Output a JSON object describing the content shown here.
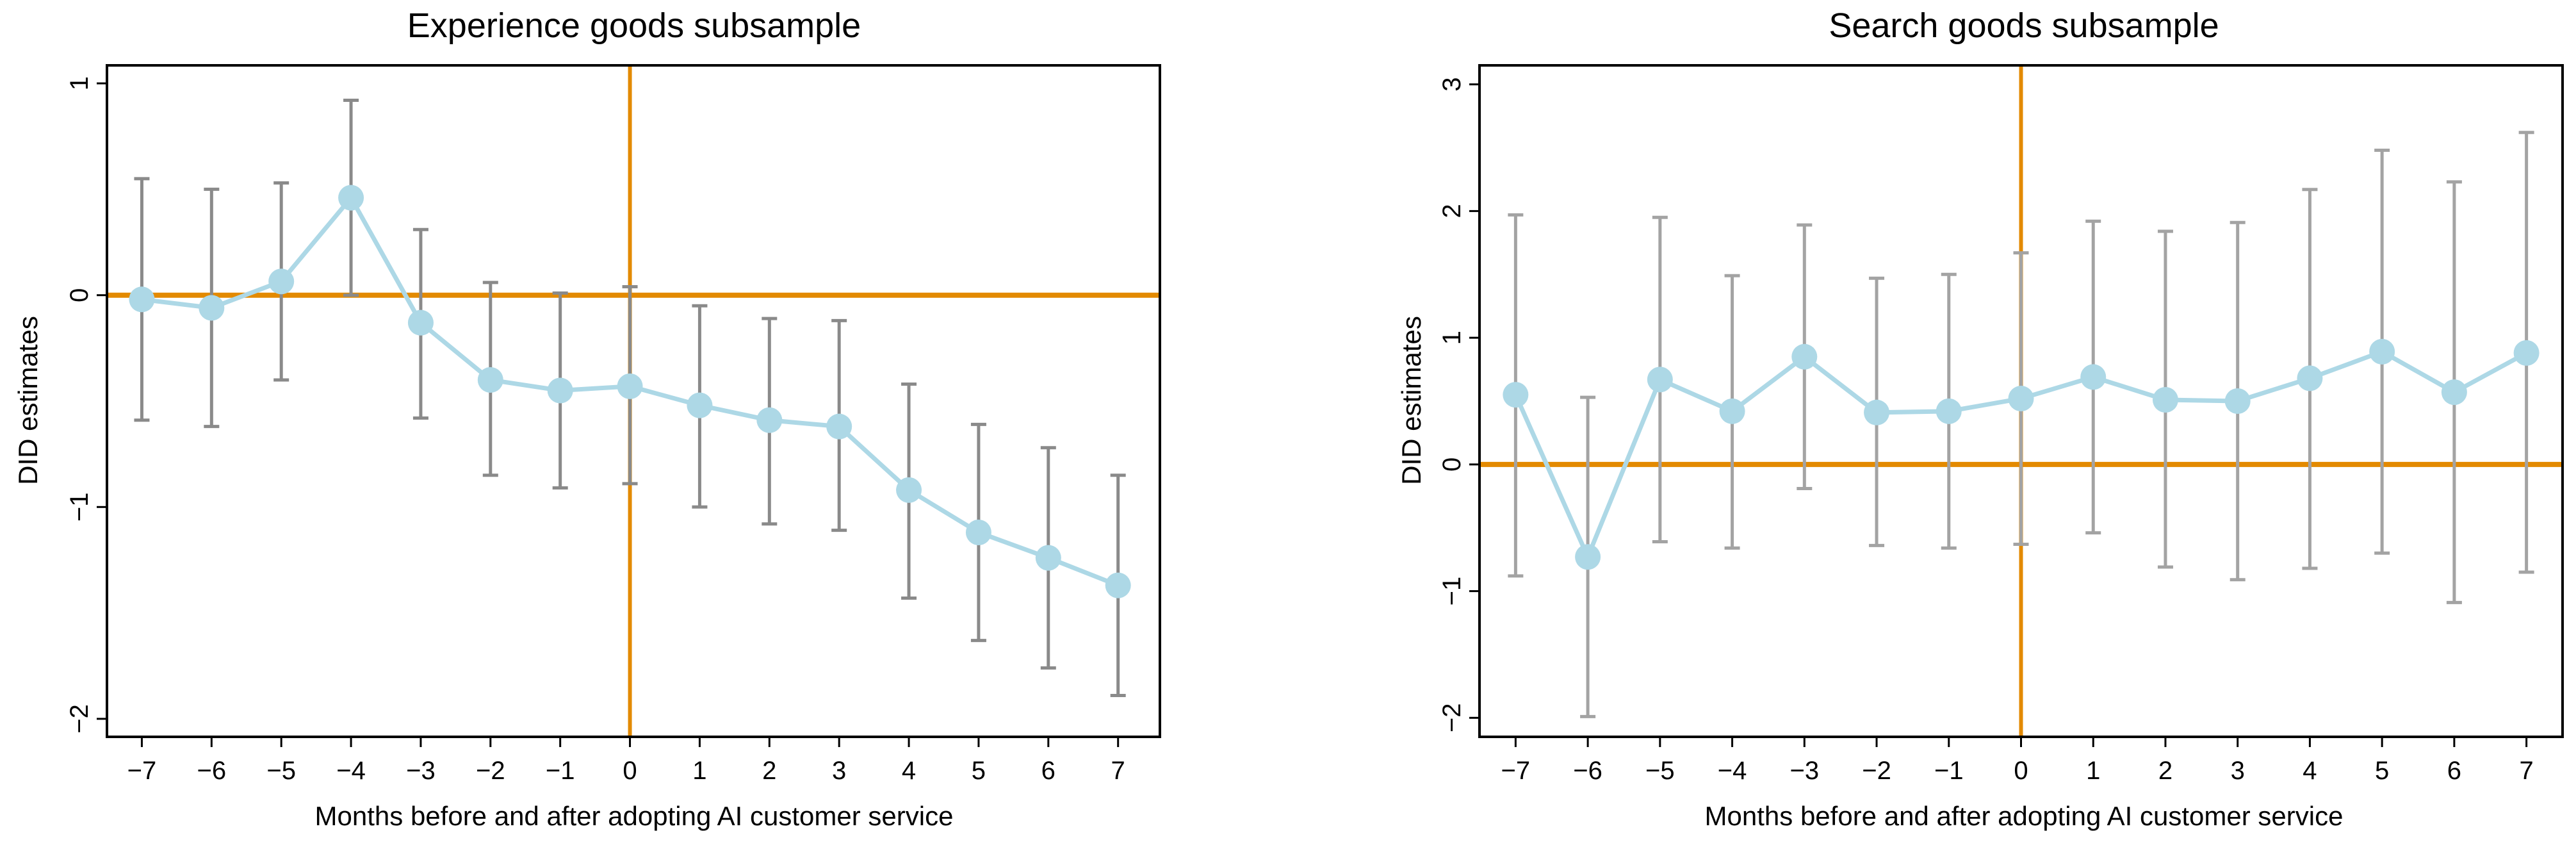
{
  "colors": {
    "reference_line": "#e38a00",
    "series": "#add8e6",
    "ci_left": "#8a8a8a",
    "ci_right": "#a3a3a3",
    "frame": "#000000"
  },
  "chart_data": [
    {
      "type": "line",
      "title": "Experience goods subsample",
      "xlabel": "Months before and after adopting AI customer service",
      "ylabel": "DID estimates",
      "x": [
        -7,
        -6,
        -5,
        -4,
        -3,
        -2,
        -1,
        0,
        1,
        2,
        3,
        4,
        5,
        6,
        7
      ],
      "xticks": [
        "−7",
        "−6",
        "−5",
        "−4",
        "−3",
        "−2",
        "−1",
        "0",
        "1",
        "2",
        "3",
        "4",
        "5",
        "6",
        "7"
      ],
      "yticks": [
        {
          "v": 1,
          "label": "1"
        },
        {
          "v": 0,
          "label": "0"
        },
        {
          "v": -1,
          "label": "−1"
        },
        {
          "v": -2,
          "label": "−2"
        }
      ],
      "ylim": [
        -2.085,
        1.085
      ],
      "xlim": [
        -7.5,
        7.6
      ],
      "reference_lines": {
        "h": 0,
        "v": 0
      },
      "series": [
        {
          "name": "DID estimates",
          "values": [
            -0.02,
            -0.06,
            0.065,
            0.46,
            -0.13,
            -0.4,
            -0.45,
            -0.43,
            -0.52,
            -0.59,
            -0.62,
            -0.92,
            -1.12,
            -1.24,
            -1.37
          ],
          "ci_upper": [
            0.55,
            0.5,
            0.53,
            0.92,
            0.31,
            0.06,
            0.01,
            0.04,
            -0.05,
            -0.11,
            -0.12,
            -0.42,
            -0.61,
            -0.72,
            -0.85
          ],
          "ci_lower": [
            -0.59,
            -0.62,
            -0.4,
            0.0,
            -0.58,
            -0.85,
            -0.91,
            -0.89,
            -1.0,
            -1.08,
            -1.11,
            -1.43,
            -1.63,
            -1.76,
            -1.89
          ]
        }
      ],
      "grid": false
    },
    {
      "type": "line",
      "title": "Search goods subsample",
      "xlabel": "Months before and after adopting AI customer service",
      "ylabel": "DID estimates",
      "x": [
        -7,
        -6,
        -5,
        -4,
        -3,
        -2,
        -1,
        0,
        1,
        2,
        3,
        4,
        5,
        6,
        7
      ],
      "xticks": [
        "−7",
        "−6",
        "−5",
        "−4",
        "−3",
        "−2",
        "−1",
        "0",
        "1",
        "2",
        "3",
        "4",
        "5",
        "6",
        "7"
      ],
      "yticks": [
        {
          "v": 3,
          "label": "3"
        },
        {
          "v": 2,
          "label": "2"
        },
        {
          "v": 1,
          "label": "1"
        },
        {
          "v": 0,
          "label": "0"
        },
        {
          "v": -1,
          "label": "−1"
        },
        {
          "v": -2,
          "label": "−2"
        }
      ],
      "ylim": [
        -2.15,
        3.15
      ],
      "xlim": [
        -7.5,
        7.5
      ],
      "reference_lines": {
        "h": 0,
        "v": 0
      },
      "series": [
        {
          "name": "DID estimates",
          "values": [
            0.55,
            -0.73,
            0.67,
            0.42,
            0.85,
            0.41,
            0.42,
            0.52,
            0.69,
            0.51,
            0.5,
            0.68,
            0.89,
            0.57,
            0.88
          ],
          "ci_upper": [
            1.97,
            0.53,
            1.95,
            1.49,
            1.89,
            1.47,
            1.5,
            1.67,
            1.92,
            1.84,
            1.91,
            2.17,
            2.48,
            2.23,
            2.62
          ],
          "ci_lower": [
            -0.88,
            -1.99,
            -0.61,
            -0.66,
            -0.19,
            -0.64,
            -0.66,
            -0.63,
            -0.54,
            -0.81,
            -0.91,
            -0.82,
            -0.7,
            -1.09,
            -0.85
          ]
        }
      ],
      "grid": false
    }
  ]
}
